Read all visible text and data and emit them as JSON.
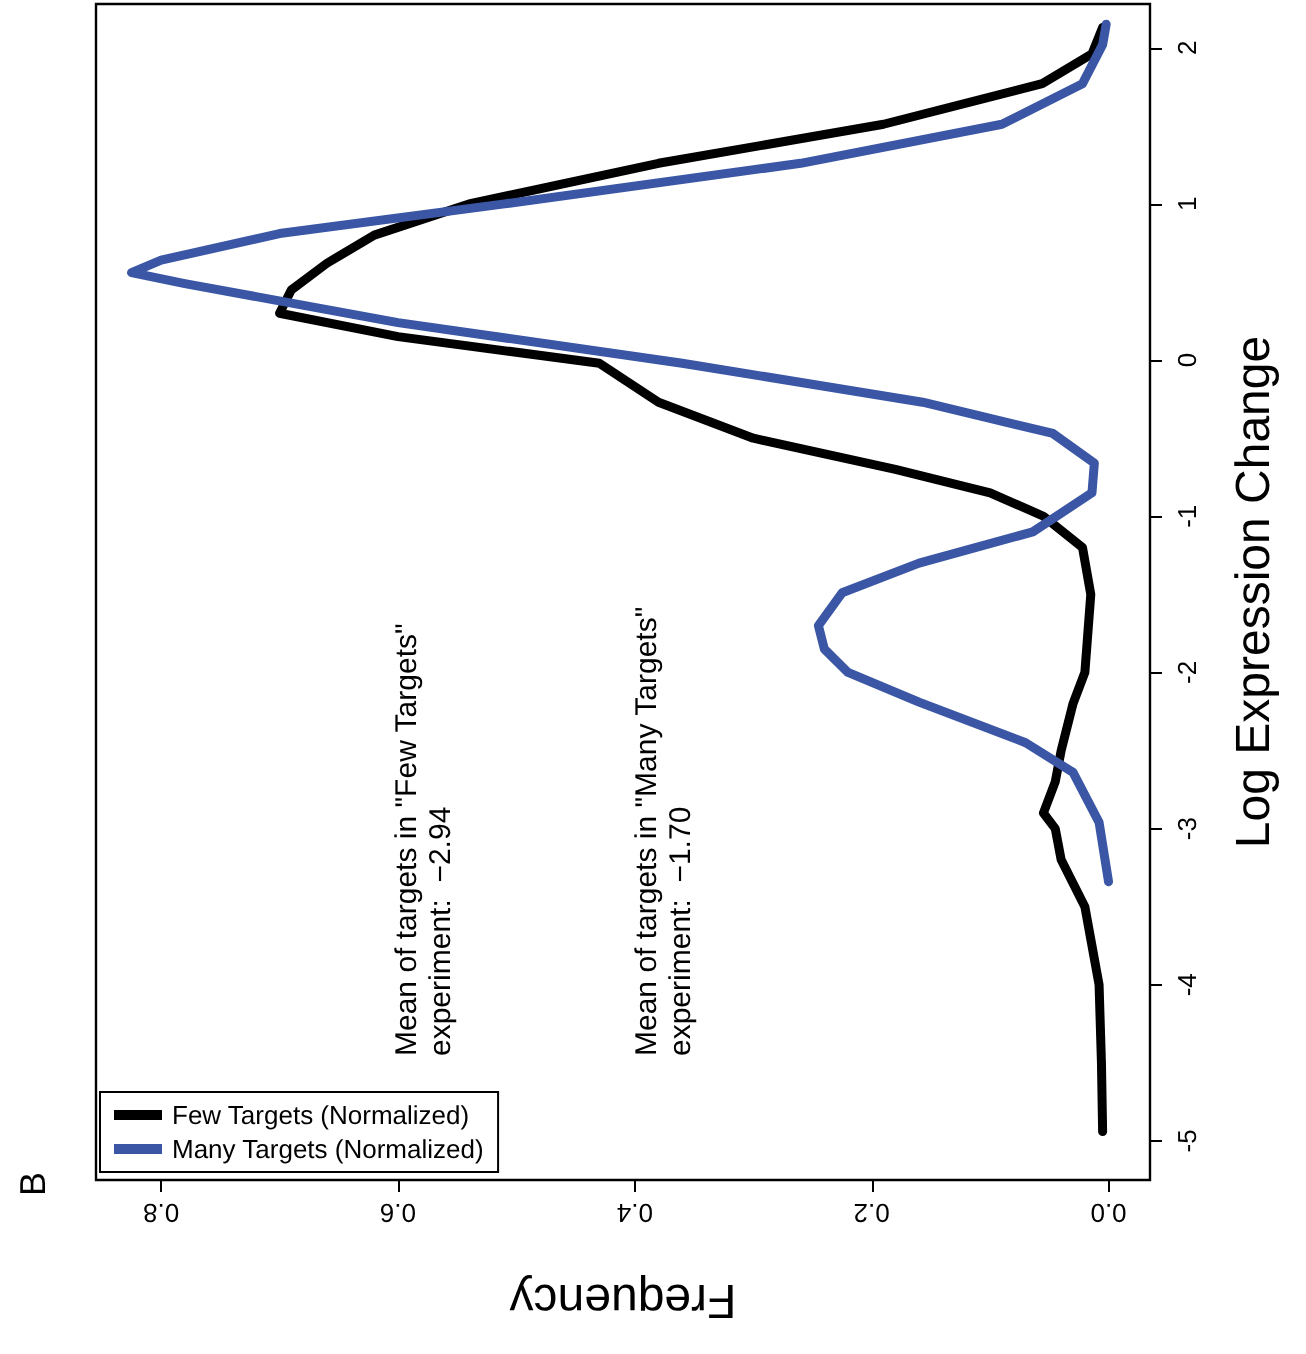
{
  "chart_data": {
    "type": "line",
    "xlabel": "Frequency",
    "ylabel": "Log Expression Change",
    "annotations": [
      "B",
      "Mean of targets in \"Few Targets\"\nexperiment:  −2.94",
      "Mean of targets in \"Many Targets\"\nexperiment:  −1.70"
    ],
    "xlim": [
      0.855,
      -0.035
    ],
    "ylim": [
      -5.25,
      2.28
    ],
    "xticks": [
      {
        "value": 0,
        "label": "0.0"
      },
      {
        "value": 0.2,
        "label": "0.2"
      },
      {
        "value": 0.4,
        "label": "0.4"
      },
      {
        "value": 0.6,
        "label": "0.6"
      },
      {
        "value": 0.8,
        "label": "0.8"
      }
    ],
    "yticks": [
      -5,
      -4,
      -3,
      -2,
      -1,
      0,
      1,
      2
    ],
    "grid": false,
    "legend": "bottom left",
    "marker": "none",
    "line_style": "solid",
    "series": [
      {
        "name": "Few Targets (Normalized)",
        "color": "#000000",
        "values": [
          -4.94,
          -4.5,
          -4,
          -3.5,
          -3.2,
          -3,
          -2.9,
          -2.7,
          -2.5,
          -2.2,
          -2,
          -1.5,
          -1.2,
          -1,
          -0.85,
          -0.7,
          -0.5,
          -0.27,
          -0.02,
          0.15,
          0.3,
          0.45,
          0.62,
          0.8,
          1,
          1.26,
          1.51,
          1.77,
          1.96,
          2.13
        ],
        "x": [
          0.005,
          0.006,
          0.008,
          0.02,
          0.04,
          0.045,
          0.055,
          0.045,
          0.04,
          0.03,
          0.02,
          0.015,
          0.022,
          0.055,
          0.1,
          0.18,
          0.3,
          0.38,
          0.43,
          0.6,
          0.7,
          0.69,
          0.66,
          0.62,
          0.54,
          0.38,
          0.19,
          0.056,
          0.014,
          0.005
        ]
      },
      {
        "name": "Many Targets (Normalized)",
        "color": "#3a56a5",
        "values": [
          -3.34,
          -2.96,
          -2.64,
          -2.45,
          -2.19,
          -2,
          -1.85,
          -1.7,
          -1.49,
          -1.3,
          -1.1,
          -0.85,
          -0.66,
          -0.47,
          -0.27,
          -0.02,
          0.24,
          0.49,
          0.56,
          0.64,
          0.81,
          1,
          1.26,
          1.51,
          1.77,
          2.02,
          2.15
        ],
        "x": [
          0,
          0.008,
          0.03,
          0.07,
          0.16,
          0.22,
          0.24,
          0.245,
          0.225,
          0.16,
          0.064,
          0.014,
          0.012,
          0.047,
          0.157,
          0.36,
          0.6,
          0.78,
          0.825,
          0.8,
          0.7,
          0.51,
          0.26,
          0.09,
          0.022,
          0.005,
          0.002
        ]
      }
    ]
  }
}
